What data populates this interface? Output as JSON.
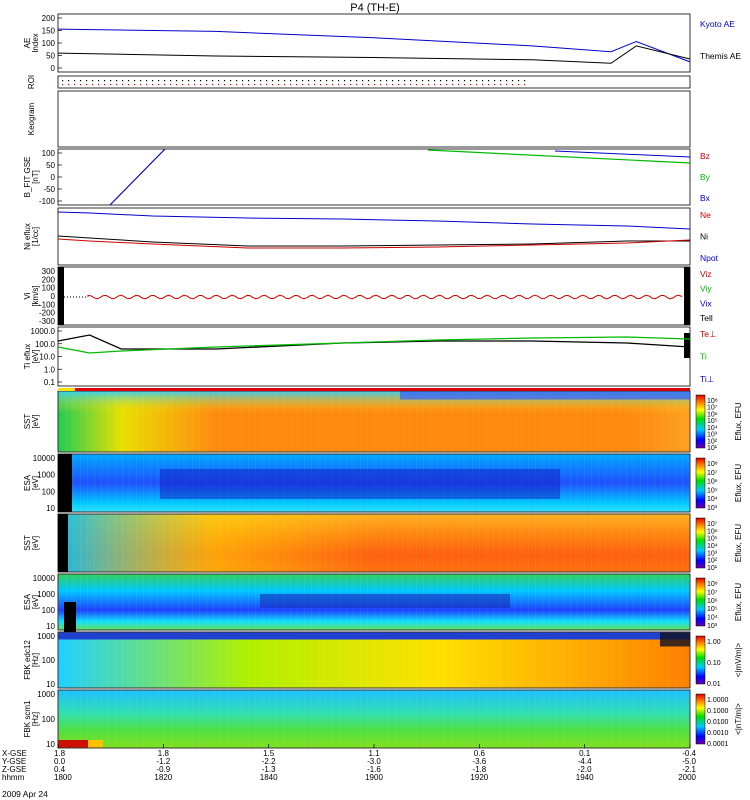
{
  "title": "P4 (TH-E)",
  "date_label": "2009 Apr 24",
  "colors": {
    "blue": "#0000cc",
    "green": "#00bb00",
    "red": "#cc0000",
    "black": "#000000"
  },
  "chart_data": [
    {
      "type": "line",
      "id": "ae",
      "ylabel": "AE Index",
      "ylim": [
        0,
        200
      ],
      "y_ticks": [
        "200",
        "150",
        "100",
        "50",
        "0"
      ],
      "x": [
        "18:00",
        "18:30",
        "19:00",
        "19:30",
        "19:45",
        "19:50",
        "20:00"
      ],
      "series": [
        {
          "name": "Kyoto AE",
          "color": "#0000cc",
          "values": [
            148,
            140,
            118,
            90,
            70,
            105,
            35
          ]
        },
        {
          "name": "Themis AE",
          "color": "#000000",
          "values": [
            65,
            55,
            50,
            42,
            30,
            90,
            45
          ]
        }
      ]
    },
    {
      "type": "scatter",
      "id": "roi",
      "ylabel": "ROI"
    },
    {
      "type": "line",
      "id": "keogram",
      "ylabel": "Keogram"
    },
    {
      "type": "line",
      "id": "bfit",
      "ylabel": "B_FIT GSE [nT]",
      "ylim": [
        -100,
        100
      ],
      "y_ticks": [
        "100",
        "50",
        "0",
        "-50",
        "-100"
      ],
      "legend": [
        {
          "name": "Bz",
          "color": "#cc0000"
        },
        {
          "name": "By",
          "color": "#00bb00"
        },
        {
          "name": "Bx",
          "color": "#0000cc"
        }
      ]
    },
    {
      "type": "line",
      "id": "ni",
      "ylabel": "Ni eflux [1/cc]",
      "legend": [
        {
          "name": "Ne",
          "color": "#cc0000"
        },
        {
          "name": "Ni",
          "color": "#000000"
        },
        {
          "name": "Npot",
          "color": "#0000cc"
        }
      ]
    },
    {
      "type": "line",
      "id": "vi",
      "ylabel": "Vi [km/s]",
      "ylim": [
        -300,
        300
      ],
      "y_ticks": [
        "300",
        "200",
        "100",
        "0",
        "-100",
        "-200",
        "-300"
      ],
      "legend": [
        {
          "name": "Viz",
          "color": "#cc0000"
        },
        {
          "name": "Viy",
          "color": "#00bb00"
        },
        {
          "name": "Vix",
          "color": "#0000cc"
        },
        {
          "name": "Tell",
          "color": "#000000"
        }
      ]
    },
    {
      "type": "line",
      "id": "ti",
      "ylabel": "Ti eflux [eV]",
      "y_ticks": [
        "1000.0",
        "100.0",
        "10.0",
        "1.0",
        "0.1"
      ],
      "legend": [
        {
          "name": "Te⊥",
          "color": "#cc0000"
        },
        {
          "name": "Ti",
          "color": "#00bb00"
        },
        {
          "name": "Ti⊥",
          "color": "#0000cc"
        }
      ]
    },
    {
      "type": "heatmap",
      "id": "sst-e",
      "ylabel": "SST [eV]",
      "zlabel": "Eflux, EFU",
      "cbar_ticks": [
        "10⁸",
        "10⁷",
        "10⁶",
        "10⁵",
        "10⁴",
        "10³",
        "10²",
        "10¹"
      ]
    },
    {
      "type": "heatmap",
      "id": "esa-e",
      "ylabel": "ESA [eV]",
      "zlabel": "Eflux, EFU",
      "y_ticks": [
        "10000",
        "1000",
        "100",
        "10"
      ],
      "cbar_ticks": [
        "10⁸",
        "10⁷",
        "10⁶",
        "10⁵",
        "10⁴",
        "10³"
      ]
    },
    {
      "type": "heatmap",
      "id": "sst-i",
      "ylabel": "SST [eV]",
      "zlabel": "Eflux, EFU",
      "cbar_ticks": [
        "10⁷",
        "10⁶",
        "10⁵",
        "10⁴",
        "10³",
        "10²",
        "10¹"
      ]
    },
    {
      "type": "heatmap",
      "id": "esa-i",
      "ylabel": "ESA [eV]",
      "zlabel": "Eflux, EFU",
      "y_ticks": [
        "10000",
        "1000",
        "100",
        "10"
      ],
      "cbar_ticks": [
        "10⁸",
        "10⁷",
        "10⁶",
        "10⁵",
        "10⁴",
        "10³"
      ]
    },
    {
      "type": "heatmap",
      "id": "fbk-edc",
      "ylabel": "FBK edc12 [Hz]",
      "zlabel": "<|mV/m|>",
      "y_ticks": [
        "1000",
        "100",
        "10"
      ],
      "cbar_ticks": [
        "1.00",
        "0.10",
        "0.01"
      ]
    },
    {
      "type": "heatmap",
      "id": "fbk-scm",
      "ylabel": "FBK scm1 [Hz]",
      "zlabel": "<|nT/m|>",
      "y_ticks": [
        "1000",
        "100",
        "10"
      ],
      "cbar_ticks": [
        "1.0000",
        "0.1000",
        "0.0100",
        "0.0010",
        "0.0001"
      ]
    }
  ],
  "x_axis": {
    "row_labels": [
      "X-GSE",
      "Y-GSE",
      "Z-GSE",
      "hhmm"
    ],
    "columns": [
      [
        "1.8",
        "0.0",
        "0.4",
        "1800"
      ],
      [
        "1.8",
        "-1.2",
        "-0.9",
        "1820"
      ],
      [
        "1.5",
        "-2.2",
        "-1.3",
        "1840"
      ],
      [
        "1.1",
        "-3.0",
        "-1.6",
        "1900"
      ],
      [
        "0.6",
        "-3.6",
        "-1.8",
        "1920"
      ],
      [
        "0.1",
        "-4.4",
        "-2.0",
        "1940"
      ],
      [
        "-0.4",
        "-5.0",
        "-2.1",
        "2000"
      ]
    ]
  }
}
